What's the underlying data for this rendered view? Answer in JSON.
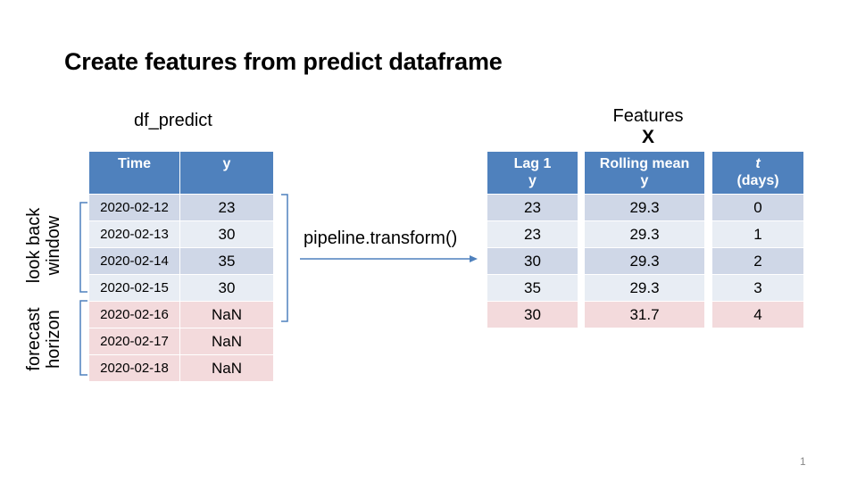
{
  "slide": {
    "title": "Create features from predict dataframe",
    "page_number": "1"
  },
  "predict_df": {
    "label": "df_predict",
    "columns": [
      "Time",
      "y"
    ],
    "rows": [
      {
        "time": "2020-02-12",
        "y": "23"
      },
      {
        "time": "2020-02-13",
        "y": "30"
      },
      {
        "time": "2020-02-14",
        "y": "35"
      },
      {
        "time": "2020-02-15",
        "y": "30"
      },
      {
        "time": "2020-02-16",
        "y": "NaN"
      },
      {
        "time": "2020-02-17",
        "y": "NaN"
      },
      {
        "time": "2020-02-18",
        "y": "NaN"
      }
    ]
  },
  "annotations": {
    "lookback": [
      "look back",
      "window"
    ],
    "forecast": [
      "forecast",
      "horizon"
    ]
  },
  "transform": {
    "label": "pipeline.transform()"
  },
  "features": {
    "label": "Features",
    "sub_label": "X",
    "lag": {
      "header": [
        "Lag 1",
        "y"
      ],
      "values": [
        "23",
        "23",
        "30",
        "35",
        "30"
      ]
    },
    "rolling": {
      "header": [
        "Rolling mean",
        "y"
      ],
      "values": [
        "29.3",
        "29.3",
        "29.3",
        "29.3",
        "31.7"
      ]
    },
    "t": {
      "header": [
        "t",
        "(days)"
      ],
      "values": [
        "0",
        "1",
        "2",
        "3",
        "4"
      ]
    }
  },
  "colors": {
    "header": "#4f81bd",
    "row_dark": "#cfd7e7",
    "row_light": "#e8edf4",
    "forecast_row": "#f3dadc",
    "bracket": "#4f81bd"
  }
}
